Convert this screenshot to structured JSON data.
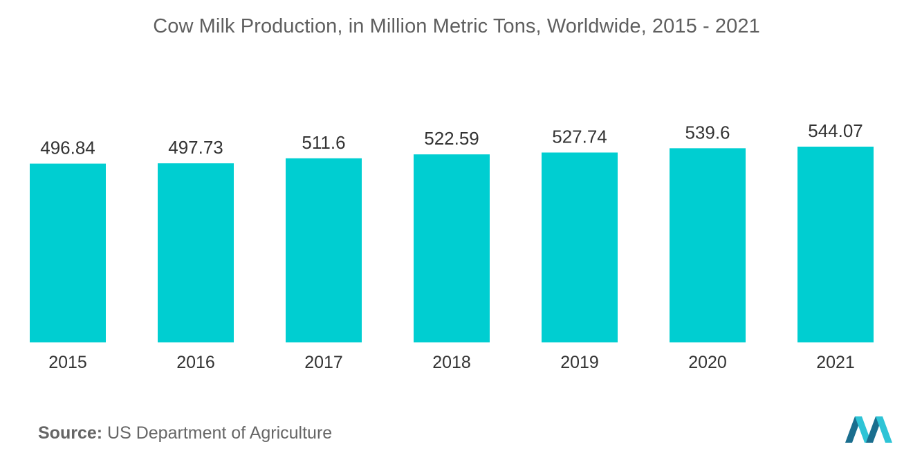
{
  "chart_data": {
    "type": "bar",
    "title": "Cow Milk Production, in Million Metric Tons, Worldwide, 2015 - 2021",
    "categories": [
      "2015",
      "2016",
      "2017",
      "2018",
      "2019",
      "2020",
      "2021"
    ],
    "values": [
      496.84,
      497.73,
      511.6,
      522.59,
      527.74,
      539.6,
      544.07
    ],
    "value_labels": [
      "496.84",
      "497.73",
      "511.6",
      "522.59",
      "527.74",
      "539.6",
      "544.07"
    ],
    "xlabel": "",
    "ylabel": "",
    "ylim": [
      0,
      544.07
    ],
    "grid": false,
    "legend": "none",
    "bar_color": "#00ced1"
  },
  "source": {
    "label": "Source:",
    "text": "US Department of Agriculture"
  },
  "colors": {
    "bar": "#00ced1",
    "logo_dark": "#1a6e8e",
    "logo_light": "#2ec4d6"
  }
}
